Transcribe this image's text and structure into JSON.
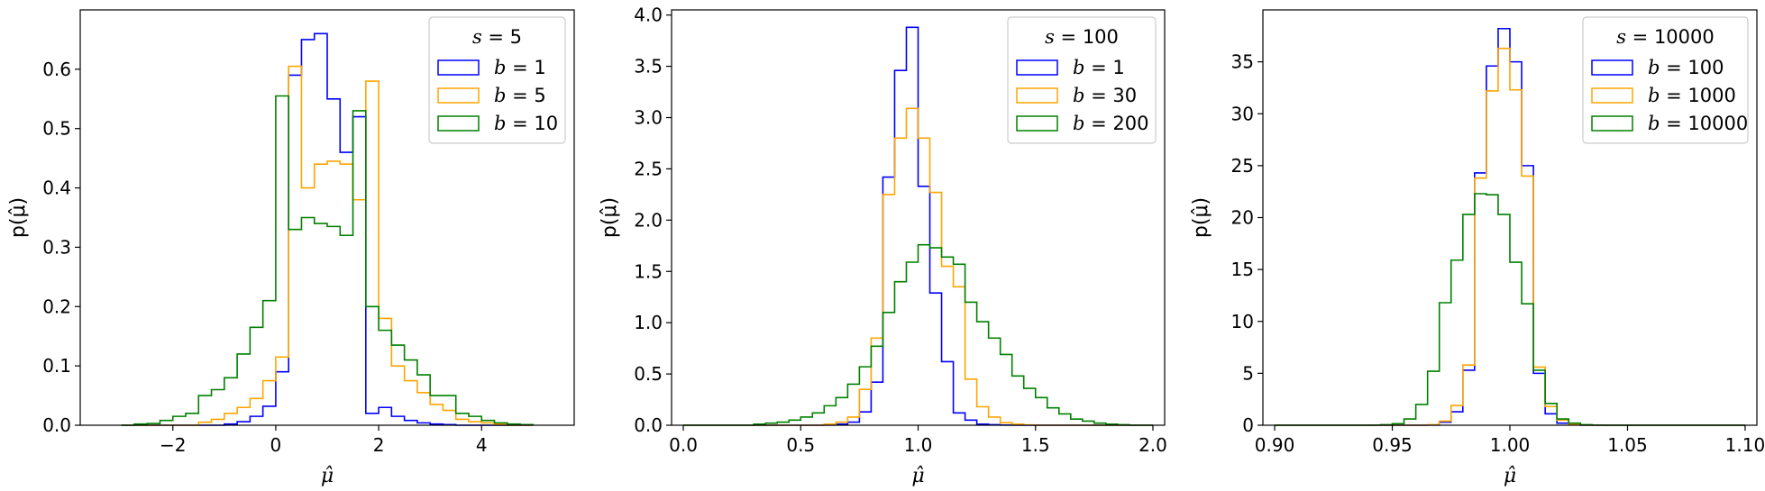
{
  "chart_data": [
    {
      "type": "histogram",
      "xlabel": "μ̂",
      "ylabel": "p(μ̂)",
      "xlim": [
        -3.8,
        5.8
      ],
      "ylim": [
        0,
        0.7
      ],
      "xticks": [
        -2,
        0,
        2,
        4
      ],
      "yticks": [
        0.0,
        0.1,
        0.2,
        0.3,
        0.4,
        0.5,
        0.6
      ],
      "ytick_decimals": 1,
      "xtick_decimals": 0,
      "legend": {
        "title_var": "s",
        "title_value": "5",
        "placement": "upper right"
      },
      "bin_edges": [
        -3.0,
        -2.75,
        -2.5,
        -2.25,
        -2.0,
        -1.75,
        -1.5,
        -1.25,
        -1.0,
        -0.75,
        -0.5,
        -0.25,
        0.0,
        0.25,
        0.5,
        0.75,
        1.0,
        1.25,
        1.5,
        1.75,
        2.0,
        2.25,
        2.5,
        2.75,
        3.0,
        3.25,
        3.5,
        3.75,
        4.0,
        4.25,
        4.5,
        4.75,
        5.0
      ],
      "series": [
        {
          "var": "b",
          "value": "1",
          "color": "#0000ff",
          "values": [
            0,
            0,
            0,
            0,
            0,
            0,
            0,
            0,
            0.002,
            0.006,
            0.015,
            0.032,
            0.09,
            0.59,
            0.65,
            0.66,
            0.55,
            0.46,
            0.52,
            0.02,
            0.03,
            0.015,
            0.008,
            0.004,
            0.002,
            0.001,
            0,
            0,
            0,
            0,
            0,
            0
          ]
        },
        {
          "var": "b",
          "value": "5",
          "color": "#ffa500",
          "values": [
            0,
            0,
            0,
            0,
            0,
            0,
            0.005,
            0.01,
            0.02,
            0.03,
            0.045,
            0.075,
            0.115,
            0.605,
            0.4,
            0.44,
            0.445,
            0.44,
            0.38,
            0.58,
            0.18,
            0.1,
            0.075,
            0.055,
            0.035,
            0.025,
            0.01,
            0.006,
            0.004,
            0.002,
            0,
            0
          ]
        },
        {
          "var": "b",
          "value": "10",
          "color": "#008000",
          "values": [
            0,
            0.002,
            0.003,
            0.008,
            0.015,
            0.02,
            0.05,
            0.06,
            0.08,
            0.12,
            0.165,
            0.21,
            0.555,
            0.33,
            0.35,
            0.34,
            0.335,
            0.32,
            0.53,
            0.2,
            0.16,
            0.135,
            0.11,
            0.085,
            0.05,
            0.05,
            0.02,
            0.015,
            0.008,
            0.004,
            0.002,
            0.001
          ]
        }
      ]
    },
    {
      "type": "histogram",
      "xlabel": "μ̂",
      "ylabel": "p(μ̂)",
      "xlim": [
        -0.05,
        2.05
      ],
      "ylim": [
        0,
        4.05
      ],
      "xticks": [
        0.0,
        0.5,
        1.0,
        1.5,
        2.0
      ],
      "yticks": [
        0.0,
        0.5,
        1.0,
        1.5,
        2.0,
        2.5,
        3.0,
        3.5,
        4.0
      ],
      "ytick_decimals": 1,
      "xtick_decimals": 1,
      "legend": {
        "title_var": "s",
        "title_value": "100",
        "placement": "upper right"
      },
      "bin_edges": [
        0.0,
        0.05,
        0.1,
        0.15,
        0.2,
        0.25,
        0.3,
        0.35,
        0.4,
        0.45,
        0.5,
        0.55,
        0.6,
        0.65,
        0.7,
        0.75,
        0.8,
        0.85,
        0.9,
        0.95,
        1.0,
        1.05,
        1.1,
        1.15,
        1.2,
        1.25,
        1.3,
        1.35,
        1.4,
        1.45,
        1.5,
        1.55,
        1.6,
        1.65,
        1.7,
        1.75,
        1.8,
        1.85,
        1.9,
        1.95,
        2.0
      ],
      "series": [
        {
          "var": "b",
          "value": "1",
          "color": "#0000ff",
          "values": [
            0,
            0,
            0,
            0,
            0,
            0,
            0,
            0,
            0,
            0,
            0,
            0,
            0.002,
            0.01,
            0.03,
            0.13,
            0.42,
            2.42,
            3.46,
            3.88,
            2.33,
            1.29,
            0.62,
            0.12,
            0.05,
            0.01,
            0.005,
            0.002,
            0,
            0,
            0,
            0,
            0,
            0,
            0,
            0,
            0,
            0,
            0,
            0
          ]
        },
        {
          "var": "b",
          "value": "30",
          "color": "#ffa500",
          "values": [
            0,
            0,
            0,
            0,
            0,
            0,
            0,
            0,
            0,
            0,
            0,
            0,
            0.01,
            0.03,
            0.08,
            0.35,
            0.85,
            2.25,
            2.8,
            3.09,
            2.8,
            2.27,
            1.55,
            1.35,
            0.45,
            0.18,
            0.08,
            0.025,
            0.01,
            0.003,
            0,
            0,
            0,
            0,
            0,
            0,
            0,
            0,
            0,
            0
          ]
        },
        {
          "var": "b",
          "value": "200",
          "color": "#008000",
          "values": [
            0,
            0,
            0,
            0,
            0,
            0,
            0.01,
            0.02,
            0.03,
            0.05,
            0.08,
            0.12,
            0.19,
            0.27,
            0.4,
            0.57,
            0.77,
            1.1,
            1.4,
            1.59,
            1.76,
            1.73,
            1.64,
            1.57,
            1.2,
            1.01,
            0.85,
            0.69,
            0.48,
            0.36,
            0.27,
            0.17,
            0.11,
            0.06,
            0.04,
            0.02,
            0.01,
            0.005,
            0,
            0
          ]
        }
      ]
    },
    {
      "type": "histogram",
      "xlabel": "μ̂",
      "ylabel": "p(μ̂)",
      "xlim": [
        0.895,
        1.105
      ],
      "ylim": [
        0,
        40
      ],
      "xticks": [
        0.9,
        0.95,
        1.0,
        1.05,
        1.1
      ],
      "yticks": [
        0,
        5,
        10,
        15,
        20,
        25,
        30,
        35
      ],
      "ytick_decimals": 0,
      "xtick_decimals": 2,
      "legend": {
        "title_var": "s",
        "title_value": "10000",
        "placement": "upper right"
      },
      "bin_edges": [
        0.9,
        0.905,
        0.91,
        0.915,
        0.92,
        0.925,
        0.93,
        0.935,
        0.94,
        0.945,
        0.95,
        0.955,
        0.96,
        0.965,
        0.97,
        0.975,
        0.98,
        0.985,
        0.99,
        0.995,
        1.0,
        1.005,
        1.01,
        1.015,
        1.02,
        1.025,
        1.03,
        1.035,
        1.04,
        1.045,
        1.05,
        1.055,
        1.06,
        1.065,
        1.07,
        1.075,
        1.08,
        1.085,
        1.09,
        1.095,
        1.1
      ],
      "series": [
        {
          "var": "b",
          "value": "100",
          "color": "#0000ff",
          "values": [
            0,
            0,
            0,
            0,
            0,
            0,
            0,
            0,
            0,
            0,
            0,
            0,
            0,
            0.02,
            0.3,
            1.3,
            5.3,
            24.3,
            34.6,
            38.2,
            35.0,
            25.0,
            5.0,
            1.1,
            0.2,
            0.03,
            0,
            0,
            0,
            0,
            0,
            0,
            0,
            0,
            0,
            0,
            0,
            0,
            0,
            0
          ]
        },
        {
          "var": "b",
          "value": "1000",
          "color": "#ffa500",
          "values": [
            0,
            0,
            0,
            0,
            0,
            0,
            0,
            0,
            0,
            0,
            0,
            0,
            0,
            0.05,
            0.4,
            1.9,
            5.8,
            23.8,
            32.2,
            36.3,
            32.3,
            24.0,
            5.6,
            1.8,
            0.5,
            0.1,
            0,
            0,
            0,
            0,
            0,
            0,
            0,
            0,
            0,
            0,
            0,
            0,
            0,
            0
          ]
        },
        {
          "var": "b",
          "value": "10000",
          "color": "#008000",
          "values": [
            0,
            0,
            0,
            0,
            0,
            0,
            0,
            0,
            0.01,
            0.05,
            0.15,
            0.6,
            2.0,
            5.2,
            11.8,
            15.9,
            20.3,
            22.3,
            22.2,
            20.3,
            15.7,
            11.7,
            5.3,
            2.1,
            0.6,
            0.2,
            0.05,
            0.01,
            0,
            0,
            0,
            0,
            0,
            0,
            0,
            0,
            0,
            0,
            0,
            0
          ]
        }
      ]
    }
  ]
}
